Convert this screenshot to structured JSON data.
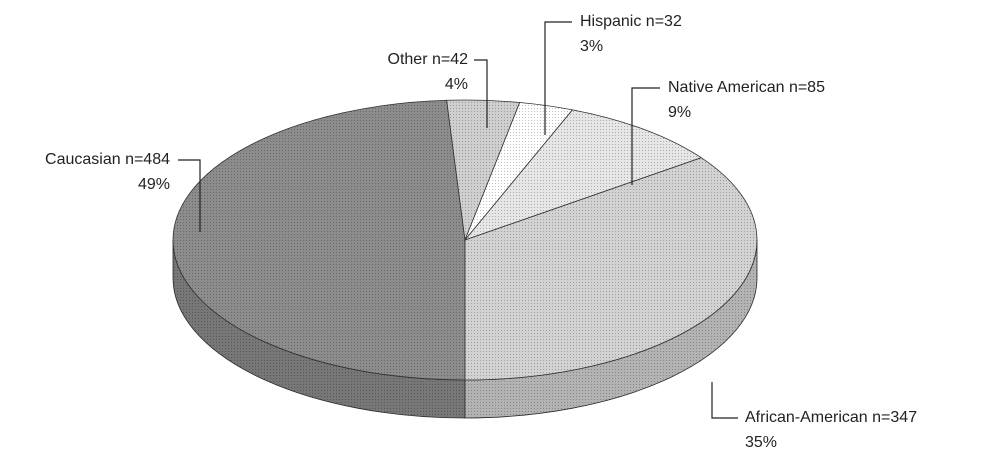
{
  "chart_data": {
    "type": "pie",
    "categories": [
      "Caucasian n=484",
      "Other n=42",
      "Hispanic n=32",
      "Native American n=85",
      "African-American n=347"
    ],
    "values": [
      49,
      4,
      3,
      9,
      35
    ],
    "value_labels": [
      "49%",
      "4%",
      "3%",
      "9%",
      "35%"
    ],
    "colors": [
      "#8c8c8c",
      "#cfcfcf",
      "#ffffff",
      "#e6e6e6",
      "#d2d2d2"
    ]
  }
}
